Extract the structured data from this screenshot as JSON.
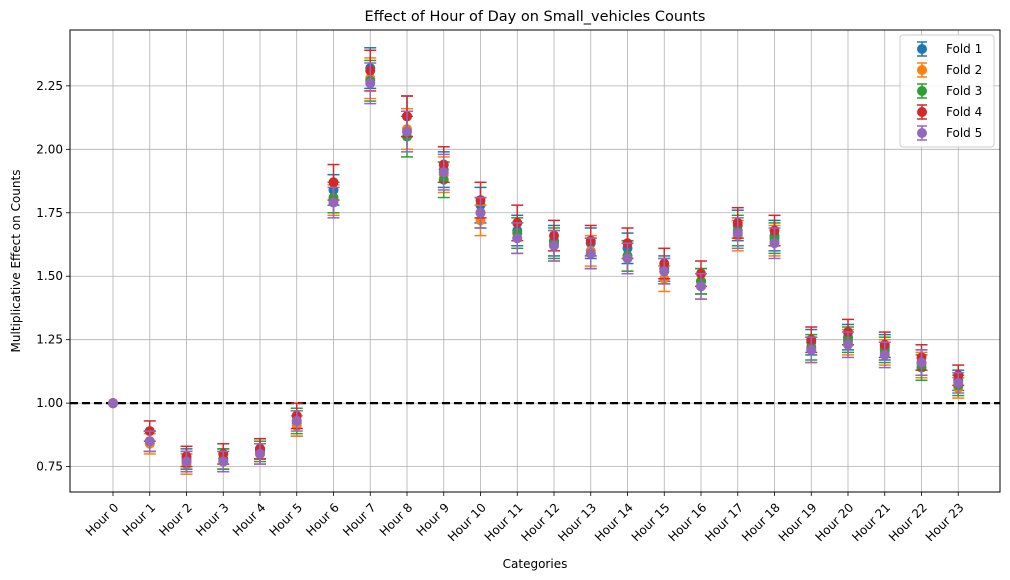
{
  "chart_data": {
    "type": "scatter",
    "title": "Effect of Hour of Day on Small_vehicles Counts",
    "xlabel": "Categories",
    "ylabel": "Multiplicative Effect on Counts",
    "categories": [
      "Hour 0",
      "Hour 1",
      "Hour 2",
      "Hour 3",
      "Hour 4",
      "Hour 5",
      "Hour 6",
      "Hour 7",
      "Hour 8",
      "Hour 9",
      "Hour 10",
      "Hour 11",
      "Hour 12",
      "Hour 13",
      "Hour 14",
      "Hour 15",
      "Hour 16",
      "Hour 17",
      "Hour 18",
      "Hour 19",
      "Hour 20",
      "Hour 21",
      "Hour 22",
      "Hour 23"
    ],
    "ylim": [
      0.65,
      2.47
    ],
    "yticks": [
      0.75,
      1.0,
      1.25,
      1.5,
      1.75,
      2.0,
      2.25
    ],
    "ytick_labels": [
      "0.75",
      "1.00",
      "1.25",
      "1.50",
      "1.75",
      "2.00",
      "2.25"
    ],
    "reference_line": 1.0,
    "grid": true,
    "legend_position": "top-right",
    "series": [
      {
        "name": "Fold 1",
        "color": "#1f77b4",
        "values": [
          1.0,
          0.85,
          0.78,
          0.78,
          0.82,
          0.92,
          1.84,
          2.32,
          2.13,
          1.92,
          1.78,
          1.68,
          1.64,
          1.63,
          1.61,
          1.53,
          1.48,
          1.7,
          1.66,
          1.24,
          1.26,
          1.22,
          1.16,
          1.09
        ],
        "errors": [
          0.0,
          0.04,
          0.04,
          0.04,
          0.04,
          0.05,
          0.06,
          0.08,
          0.08,
          0.07,
          0.07,
          0.06,
          0.06,
          0.06,
          0.06,
          0.05,
          0.05,
          0.06,
          0.06,
          0.05,
          0.05,
          0.05,
          0.05,
          0.04
        ]
      },
      {
        "name": "Fold 2",
        "color": "#ff7f0e",
        "values": [
          1.0,
          0.84,
          0.76,
          0.77,
          0.8,
          0.91,
          1.8,
          2.28,
          2.08,
          1.9,
          1.72,
          1.65,
          1.62,
          1.6,
          1.58,
          1.49,
          1.46,
          1.66,
          1.64,
          1.21,
          1.24,
          1.2,
          1.15,
          1.06
        ],
        "errors": [
          0.0,
          0.04,
          0.04,
          0.04,
          0.04,
          0.04,
          0.06,
          0.08,
          0.08,
          0.07,
          0.06,
          0.06,
          0.06,
          0.06,
          0.06,
          0.05,
          0.05,
          0.06,
          0.06,
          0.05,
          0.05,
          0.05,
          0.05,
          0.04
        ]
      },
      {
        "name": "Fold 3",
        "color": "#2ca02c",
        "values": [
          1.0,
          0.85,
          0.77,
          0.78,
          0.81,
          0.93,
          1.81,
          2.27,
          2.05,
          1.88,
          1.75,
          1.67,
          1.63,
          1.59,
          1.58,
          1.52,
          1.48,
          1.68,
          1.65,
          1.22,
          1.25,
          1.21,
          1.14,
          1.07
        ],
        "errors": [
          0.0,
          0.04,
          0.04,
          0.04,
          0.04,
          0.05,
          0.06,
          0.08,
          0.08,
          0.07,
          0.06,
          0.06,
          0.06,
          0.06,
          0.06,
          0.05,
          0.05,
          0.06,
          0.06,
          0.05,
          0.05,
          0.05,
          0.05,
          0.04
        ]
      },
      {
        "name": "Fold 4",
        "color": "#d62728",
        "values": [
          1.0,
          0.89,
          0.79,
          0.8,
          0.82,
          0.95,
          1.87,
          2.31,
          2.13,
          1.94,
          1.8,
          1.71,
          1.66,
          1.64,
          1.63,
          1.55,
          1.51,
          1.71,
          1.68,
          1.25,
          1.28,
          1.23,
          1.18,
          1.11
        ],
        "errors": [
          0.0,
          0.04,
          0.04,
          0.04,
          0.04,
          0.05,
          0.07,
          0.08,
          0.08,
          0.07,
          0.07,
          0.07,
          0.06,
          0.06,
          0.06,
          0.06,
          0.05,
          0.06,
          0.06,
          0.05,
          0.05,
          0.05,
          0.05,
          0.04
        ]
      },
      {
        "name": "Fold 5",
        "color": "#9467bd",
        "values": [
          1.0,
          0.85,
          0.77,
          0.77,
          0.8,
          0.93,
          1.79,
          2.26,
          2.07,
          1.91,
          1.75,
          1.65,
          1.62,
          1.59,
          1.57,
          1.52,
          1.46,
          1.67,
          1.63,
          1.21,
          1.23,
          1.19,
          1.16,
          1.08
        ],
        "errors": [
          0.0,
          0.04,
          0.04,
          0.04,
          0.04,
          0.04,
          0.06,
          0.08,
          0.08,
          0.07,
          0.06,
          0.06,
          0.06,
          0.06,
          0.06,
          0.05,
          0.05,
          0.06,
          0.06,
          0.05,
          0.05,
          0.05,
          0.05,
          0.04
        ]
      }
    ]
  }
}
